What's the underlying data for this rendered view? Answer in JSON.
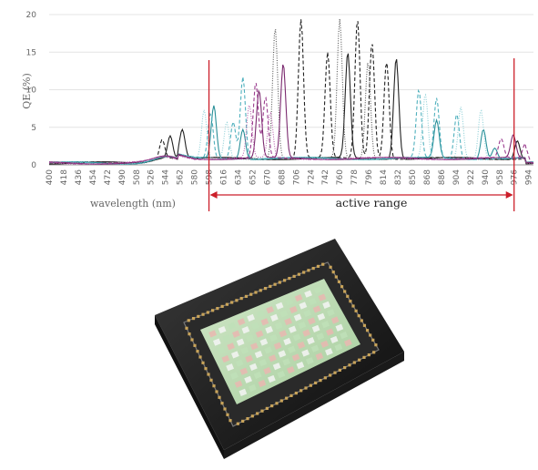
{
  "chart_data": {
    "type": "line",
    "ylabel": "QE (%)",
    "xlabel": "wavelength (nm)",
    "ylim": [
      0,
      20
    ],
    "xlim": [
      400,
      1000
    ],
    "y_ticks": [
      "0",
      "5",
      "10",
      "15",
      "20"
    ],
    "x_ticks": [
      "400",
      "418",
      "436",
      "454",
      "472",
      "490",
      "508",
      "526",
      "544",
      "562",
      "580",
      "598",
      "616",
      "634",
      "652",
      "670",
      "688",
      "706",
      "724",
      "742",
      "760",
      "778",
      "796",
      "814",
      "832",
      "850",
      "868",
      "886",
      "904",
      "922",
      "940",
      "958",
      "976",
      "994"
    ],
    "grid": "horizontal",
    "active_range": {
      "label": "active range",
      "start_nm": 598,
      "end_nm": 976,
      "color": "#cc1f2a"
    },
    "series": [
      {
        "color": "#222222",
        "style": "solid",
        "peaks": [
          [
            550,
            3.0
          ],
          [
            565,
            3.6
          ],
          [
            770,
            14
          ],
          [
            830,
            13.5
          ],
          [
            980,
            2.5
          ]
        ]
      },
      {
        "color": "#222222",
        "style": "dashed",
        "peaks": [
          [
            540,
            2.5
          ],
          [
            712,
            18.5
          ],
          [
            745,
            14
          ],
          [
            782,
            18.5
          ],
          [
            800,
            15.5
          ],
          [
            818,
            13
          ]
        ]
      },
      {
        "color": "#555555",
        "style": "dotted",
        "peaks": [
          [
            680,
            17.5
          ],
          [
            760,
            18.5
          ],
          [
            795,
            13
          ]
        ]
      },
      {
        "color": "#2a8f98",
        "style": "solid",
        "peaks": [
          [
            604,
            7
          ],
          [
            640,
            4
          ],
          [
            880,
            5
          ],
          [
            938,
            4
          ],
          [
            952,
            1.5
          ]
        ]
      },
      {
        "color": "#4fb0bd",
        "style": "dashed",
        "peaks": [
          [
            600,
            6
          ],
          [
            628,
            5
          ],
          [
            640,
            11
          ],
          [
            858,
            9
          ],
          [
            880,
            8
          ],
          [
            905,
            6
          ]
        ]
      },
      {
        "color": "#8ccfd6",
        "style": "dotted",
        "peaks": [
          [
            592,
            6.5
          ],
          [
            620,
            5
          ],
          [
            866,
            8.5
          ],
          [
            910,
            7
          ],
          [
            935,
            6.5
          ]
        ]
      },
      {
        "color": "#7b2a6f",
        "style": "solid",
        "peaks": [
          [
            660,
            9
          ],
          [
            690,
            12.5
          ],
          [
            975,
            3
          ]
        ]
      },
      {
        "color": "#9b3d8f",
        "style": "dashed",
        "peaks": [
          [
            656,
            10
          ],
          [
            668,
            8
          ],
          [
            960,
            2.5
          ],
          [
            990,
            2
          ]
        ]
      },
      {
        "color": "#b55ba8",
        "style": "dotted",
        "peaks": [
          [
            648,
            7
          ],
          [
            674,
            6
          ]
        ]
      }
    ]
  },
  "sensor_image": {
    "description_icon": "image-sensor-chip"
  }
}
